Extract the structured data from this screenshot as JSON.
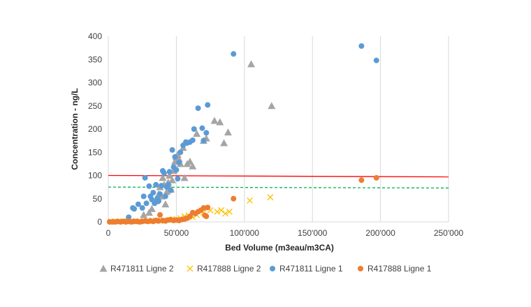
{
  "chart_data": {
    "type": "scatter",
    "xlabel": "Bed Volume (m3eau/m3CA)",
    "ylabel": "Concentration - ng/L",
    "xlim": [
      0,
      250000
    ],
    "ylim": [
      0,
      400
    ],
    "x_ticks": [
      0,
      50000,
      100000,
      150000,
      200000,
      250000
    ],
    "x_tick_labels": [
      "0",
      "50'000",
      "100'000",
      "150'000",
      "200'000",
      "250'000"
    ],
    "y_ticks": [
      0,
      50,
      100,
      150,
      200,
      250,
      300,
      350,
      400
    ],
    "y_tick_labels": [
      "0",
      "50",
      "100",
      "150",
      "200",
      "250",
      "300",
      "350",
      "400"
    ],
    "grid": "vertical",
    "legend_position": "bottom",
    "series": [
      {
        "name": "R471811 Ligne 2",
        "marker": "triangle",
        "color": "#a5a5a5",
        "points": [
          [
            26000,
            15
          ],
          [
            30000,
            20
          ],
          [
            32000,
            28
          ],
          [
            35000,
            45
          ],
          [
            37000,
            60
          ],
          [
            38000,
            75
          ],
          [
            39000,
            55
          ],
          [
            40000,
            95
          ],
          [
            41000,
            80
          ],
          [
            42000,
            38
          ],
          [
            43000,
            65
          ],
          [
            44000,
            85
          ],
          [
            45000,
            100
          ],
          [
            46000,
            70
          ],
          [
            47000,
            90
          ],
          [
            48000,
            110
          ],
          [
            49000,
            130
          ],
          [
            50000,
            140
          ],
          [
            51000,
            145
          ],
          [
            52000,
            135
          ],
          [
            53000,
            125
          ],
          [
            55000,
            160
          ],
          [
            56000,
            95
          ],
          [
            58000,
            125
          ],
          [
            60000,
            130
          ],
          [
            62000,
            120
          ],
          [
            65000,
            190
          ],
          [
            70000,
            175
          ],
          [
            72000,
            180
          ],
          [
            78000,
            218
          ],
          [
            82000,
            215
          ],
          [
            85000,
            170
          ],
          [
            88000,
            193
          ],
          [
            105000,
            340
          ],
          [
            120000,
            250
          ]
        ]
      },
      {
        "name": "R417888 Ligne 2",
        "marker": "x",
        "color": "#ffc000",
        "points": [
          [
            2000,
            1
          ],
          [
            5000,
            1
          ],
          [
            8000,
            1
          ],
          [
            11000,
            1
          ],
          [
            14000,
            2
          ],
          [
            17000,
            1
          ],
          [
            20000,
            2
          ],
          [
            23000,
            1
          ],
          [
            26000,
            2
          ],
          [
            29000,
            3
          ],
          [
            32000,
            2
          ],
          [
            35000,
            3
          ],
          [
            38000,
            2
          ],
          [
            41000,
            3
          ],
          [
            44000,
            4
          ],
          [
            47000,
            5
          ],
          [
            50000,
            6
          ],
          [
            53000,
            8
          ],
          [
            56000,
            12
          ],
          [
            59000,
            14
          ],
          [
            62000,
            10
          ],
          [
            65000,
            15
          ],
          [
            70000,
            20
          ],
          [
            75000,
            25
          ],
          [
            80000,
            22
          ],
          [
            83000,
            25
          ],
          [
            86000,
            18
          ],
          [
            89000,
            22
          ],
          [
            104000,
            46
          ],
          [
            119000,
            53
          ]
        ]
      },
      {
        "name": "R471811 Ligne 1",
        "marker": "circle",
        "color": "#5b9bd5",
        "points": [
          [
            15000,
            10
          ],
          [
            18000,
            30
          ],
          [
            19000,
            28
          ],
          [
            22000,
            38
          ],
          [
            25000,
            30
          ],
          [
            26000,
            55
          ],
          [
            27000,
            95
          ],
          [
            28000,
            40
          ],
          [
            30000,
            77
          ],
          [
            31000,
            55
          ],
          [
            32000,
            48
          ],
          [
            33000,
            63
          ],
          [
            34000,
            40
          ],
          [
            35000,
            80
          ],
          [
            36000,
            50
          ],
          [
            37000,
            45
          ],
          [
            38000,
            60
          ],
          [
            39000,
            78
          ],
          [
            40000,
            110
          ],
          [
            41000,
            105
          ],
          [
            42000,
            55
          ],
          [
            43000,
            75
          ],
          [
            44000,
            80
          ],
          [
            45000,
            108
          ],
          [
            46000,
            68
          ],
          [
            47000,
            155
          ],
          [
            48000,
            118
          ],
          [
            49000,
            140
          ],
          [
            50000,
            112
          ],
          [
            51000,
            93
          ],
          [
            52000,
            128
          ],
          [
            53000,
            150
          ],
          [
            55000,
            165
          ],
          [
            57000,
            172
          ],
          [
            58000,
            170
          ],
          [
            60000,
            172
          ],
          [
            62000,
            176
          ],
          [
            63000,
            200
          ],
          [
            66000,
            245
          ],
          [
            69000,
            202
          ],
          [
            70000,
            175
          ],
          [
            72000,
            192
          ],
          [
            73000,
            252
          ],
          [
            92000,
            362
          ],
          [
            186000,
            379
          ],
          [
            197000,
            348
          ]
        ]
      },
      {
        "name": "R417888 Ligne 1",
        "marker": "circle",
        "color": "#ed7d31",
        "points": [
          [
            1000,
            0
          ],
          [
            3000,
            0
          ],
          [
            5000,
            0
          ],
          [
            7000,
            1
          ],
          [
            9000,
            0
          ],
          [
            11000,
            1
          ],
          [
            13000,
            0
          ],
          [
            15000,
            1
          ],
          [
            17000,
            0
          ],
          [
            19000,
            1
          ],
          [
            21000,
            1
          ],
          [
            23000,
            0
          ],
          [
            25000,
            1
          ],
          [
            27000,
            2
          ],
          [
            29000,
            1
          ],
          [
            31000,
            2
          ],
          [
            33000,
            1
          ],
          [
            35000,
            3
          ],
          [
            37000,
            2
          ],
          [
            38000,
            15
          ],
          [
            40000,
            3
          ],
          [
            42000,
            2
          ],
          [
            44000,
            4
          ],
          [
            46000,
            5
          ],
          [
            48000,
            3
          ],
          [
            50000,
            4
          ],
          [
            52000,
            3
          ],
          [
            54000,
            5
          ],
          [
            56000,
            6
          ],
          [
            58000,
            8
          ],
          [
            60000,
            12
          ],
          [
            62000,
            20
          ],
          [
            64000,
            18
          ],
          [
            66000,
            22
          ],
          [
            68000,
            25
          ],
          [
            70000,
            30
          ],
          [
            71000,
            14
          ],
          [
            72000,
            12
          ],
          [
            73000,
            31
          ],
          [
            92000,
            50
          ],
          [
            186000,
            90
          ],
          [
            197000,
            95
          ]
        ]
      }
    ],
    "reference_lines": [
      {
        "color": "#ff0000",
        "style": "solid",
        "y_start": 100,
        "y_end": 97
      },
      {
        "color": "#00b050",
        "style": "dashed",
        "y_start": 75,
        "y_end": 73
      }
    ]
  }
}
